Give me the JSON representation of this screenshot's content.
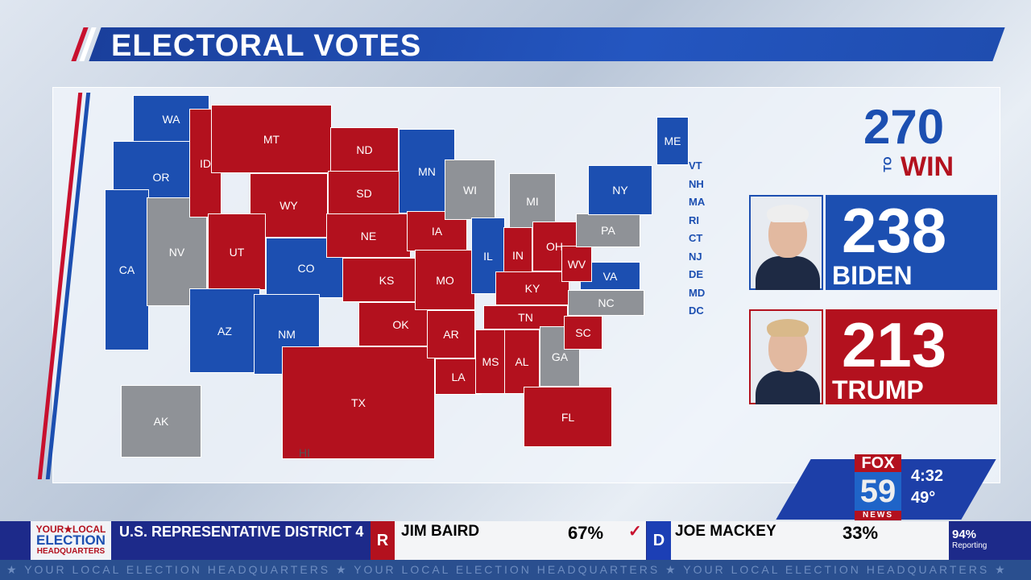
{
  "header": {
    "title": "ELECTORAL VOTES"
  },
  "colors": {
    "republican": "#b3111e",
    "democrat": "#1c4fb1",
    "undecided": "#8f9297"
  },
  "map": {
    "states": [
      {
        "abbr": "WA",
        "party": "D"
      },
      {
        "abbr": "OR",
        "party": "D"
      },
      {
        "abbr": "CA",
        "party": "D"
      },
      {
        "abbr": "NV",
        "party": "T"
      },
      {
        "abbr": "ID",
        "party": "R"
      },
      {
        "abbr": "MT",
        "party": "R"
      },
      {
        "abbr": "WY",
        "party": "R"
      },
      {
        "abbr": "UT",
        "party": "R"
      },
      {
        "abbr": "CO",
        "party": "D"
      },
      {
        "abbr": "AZ",
        "party": "D"
      },
      {
        "abbr": "NM",
        "party": "D"
      },
      {
        "abbr": "ND",
        "party": "R"
      },
      {
        "abbr": "SD",
        "party": "R"
      },
      {
        "abbr": "NE",
        "party": "R"
      },
      {
        "abbr": "KS",
        "party": "R"
      },
      {
        "abbr": "OK",
        "party": "R"
      },
      {
        "abbr": "TX",
        "party": "R"
      },
      {
        "abbr": "MN",
        "party": "D"
      },
      {
        "abbr": "IA",
        "party": "R"
      },
      {
        "abbr": "MO",
        "party": "R"
      },
      {
        "abbr": "AR",
        "party": "R"
      },
      {
        "abbr": "LA",
        "party": "R"
      },
      {
        "abbr": "WI",
        "party": "T"
      },
      {
        "abbr": "IL",
        "party": "D"
      },
      {
        "abbr": "MI",
        "party": "T"
      },
      {
        "abbr": "IN",
        "party": "R"
      },
      {
        "abbr": "OH",
        "party": "R"
      },
      {
        "abbr": "KY",
        "party": "R"
      },
      {
        "abbr": "TN",
        "party": "R"
      },
      {
        "abbr": "MS",
        "party": "R"
      },
      {
        "abbr": "AL",
        "party": "R"
      },
      {
        "abbr": "GA",
        "party": "T"
      },
      {
        "abbr": "FL",
        "party": "R"
      },
      {
        "abbr": "SC",
        "party": "R"
      },
      {
        "abbr": "NC",
        "party": "T"
      },
      {
        "abbr": "VA",
        "party": "D"
      },
      {
        "abbr": "WV",
        "party": "R"
      },
      {
        "abbr": "PA",
        "party": "T"
      },
      {
        "abbr": "NY",
        "party": "D"
      },
      {
        "abbr": "ME",
        "party": "D"
      },
      {
        "abbr": "AK",
        "party": "T"
      },
      {
        "abbr": "HI",
        "party": "D"
      }
    ],
    "small_states": [
      "VT",
      "NH",
      "MA",
      "RI",
      "CT",
      "NJ",
      "DE",
      "MD",
      "DC"
    ]
  },
  "to_win": {
    "number": "270",
    "to": "TO",
    "win": "WIN"
  },
  "candidates": [
    {
      "name": "BIDEN",
      "votes": "238",
      "party": "D"
    },
    {
      "name": "TRUMP",
      "votes": "213",
      "party": "R"
    }
  ],
  "station": {
    "logo_top": "FOX",
    "logo_num": "59",
    "logo_bottom": "NEWS",
    "time": "4:32",
    "temp": "49°"
  },
  "ticker": {
    "brand": {
      "line1": "YOUR★LOCAL",
      "line2": "ELECTION",
      "line3": "HEADQUARTERS"
    },
    "race": "U.S. REPRESENTATIVE DISTRICT 4",
    "candidates": [
      {
        "party": "R",
        "name": "JIM BAIRD",
        "pct": "67%",
        "winner": true,
        "check": "✓"
      },
      {
        "party": "D",
        "name": "JOE MACKEY",
        "pct": "33%",
        "winner": false
      }
    ],
    "reporting_pct": "94%",
    "reporting_label": "Reporting",
    "crawl": "★   YOUR LOCAL ELECTION HEADQUARTERS   ★   YOUR LOCAL ELECTION HEADQUARTERS   ★   YOUR LOCAL ELECTION HEADQUARTERS   ★"
  }
}
